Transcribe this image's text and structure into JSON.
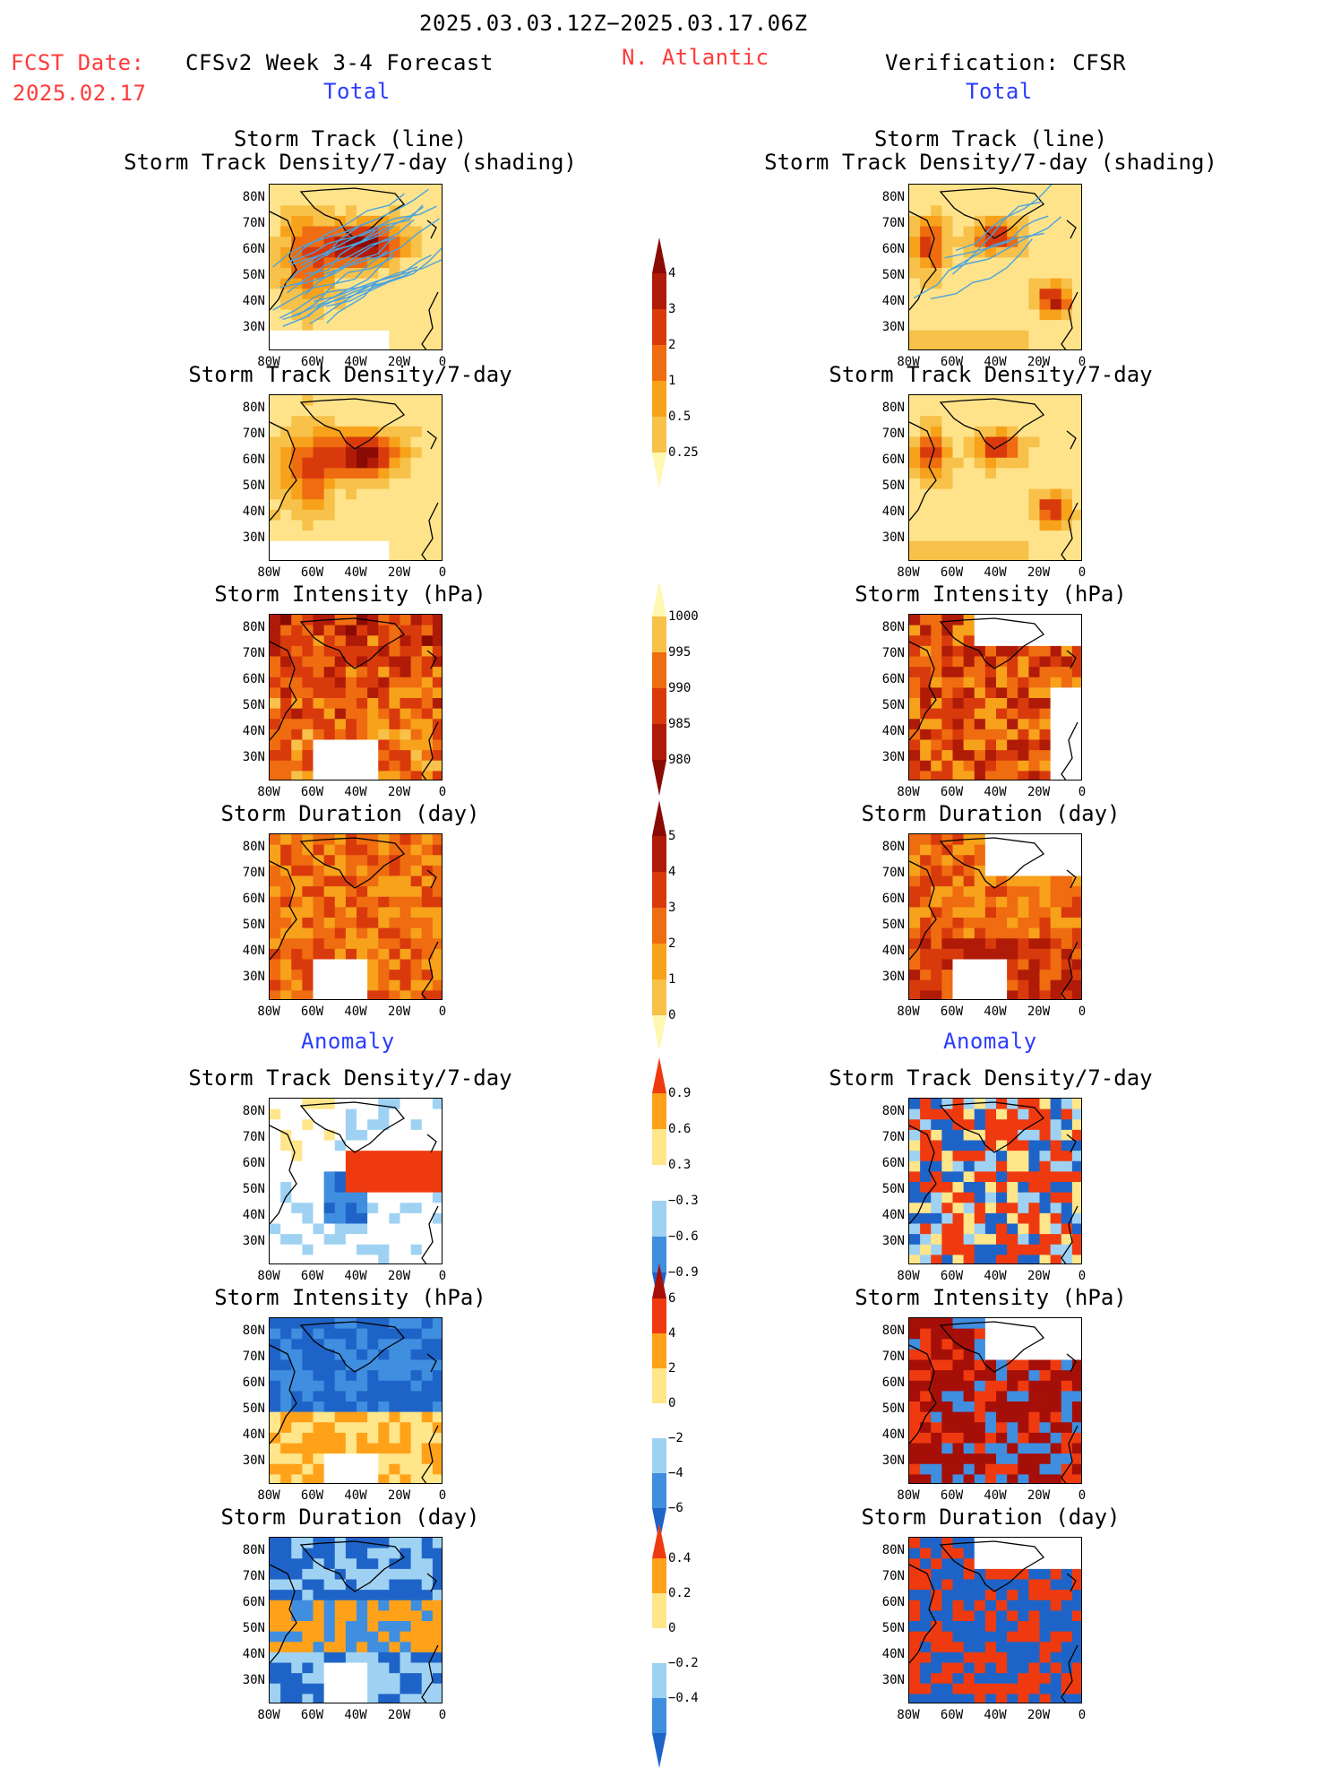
{
  "header": {
    "date_range": "2025.03.03.12Z−2025.03.17.06Z",
    "fcst_label": "FCST Date:",
    "fcst_date": "2025.02.17",
    "model": "CFSv2 Week 3-4 Forecast",
    "region": "N. Atlantic",
    "verification": "Verification: CFSR"
  },
  "sections": {
    "total": "Total",
    "anomaly": "Anomaly"
  },
  "panel_titles": {
    "track_line": "Storm Track (line)",
    "track_shading": "Storm Track Density/7-day (shading)",
    "density": "Storm Track Density/7-day",
    "intensity": "Storm Intensity (hPa)",
    "duration": "Storm Duration (day)"
  },
  "axes": {
    "lat_ticks": [
      "80N",
      "70N",
      "60N",
      "50N",
      "40N",
      "30N"
    ],
    "lon_ticks": [
      "80W",
      "60W",
      "40W",
      "20W",
      "0"
    ]
  },
  "colorbars": {
    "density": [
      "4",
      "3",
      "2",
      "1",
      "0.5",
      "0.25"
    ],
    "intensity": [
      "1000",
      "995",
      "990",
      "985",
      "980"
    ],
    "duration": [
      "5",
      "4",
      "3",
      "2",
      "1",
      "0"
    ],
    "density_anom": [
      "0.9",
      "0.6",
      "0.3",
      "−0.3",
      "−0.6",
      "−0.9"
    ],
    "intensity_anom": [
      "6",
      "4",
      "2",
      "0",
      "−2",
      "−4",
      "−6"
    ],
    "duration_anom": [
      "0.4",
      "0.2",
      "0",
      "−0.2",
      "−0.4"
    ]
  },
  "colors": {
    "title_red": "#ff3b3b",
    "section_blue": "#2a3cff",
    "track_line": "#4aa3df",
    "warm_scale": [
      "#fff7b2",
      "#ffe38a",
      "#f7c14a",
      "#f7a21a",
      "#ef6c10",
      "#d93a0c",
      "#b01b08",
      "#8a0a04"
    ],
    "anom_scale": [
      "#1e64c8",
      "#3f8ee0",
      "#9fd2f2",
      "#ffffff",
      "#ffe68a",
      "#ffa21a",
      "#ef3a10",
      "#a50f08"
    ]
  }
}
